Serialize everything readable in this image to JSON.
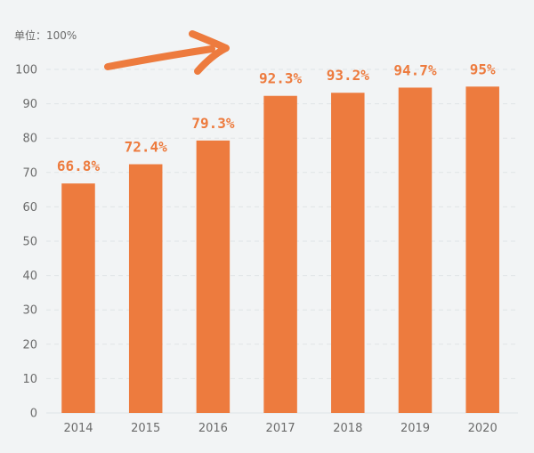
{
  "chart_data": {
    "type": "bar",
    "unit_label": "单位：100%",
    "categories": [
      "2014",
      "2015",
      "2016",
      "2017",
      "2018",
      "2019",
      "2020"
    ],
    "values": [
      66.8,
      72.4,
      79.3,
      92.3,
      93.2,
      94.7,
      95
    ],
    "value_labels": [
      "66.8%",
      "72.4%",
      "79.3%",
      "92.3%",
      "93.2%",
      "94.7%",
      "95%"
    ],
    "y_ticks": [
      "0",
      "10",
      "20",
      "30",
      "40",
      "50",
      "60",
      "70",
      "80",
      "90",
      "100"
    ],
    "ylim": [
      0,
      100
    ],
    "grid": true,
    "colors": {
      "bar": "#ed7b3e",
      "value_label": "#ed7b3e",
      "arrow": "#ed7b3e",
      "grid": "#dfe3e6",
      "axis_text": "#6b6b6b",
      "background": "#f2f4f5"
    },
    "annotation_icon": "trend-up-arrow-icon"
  }
}
